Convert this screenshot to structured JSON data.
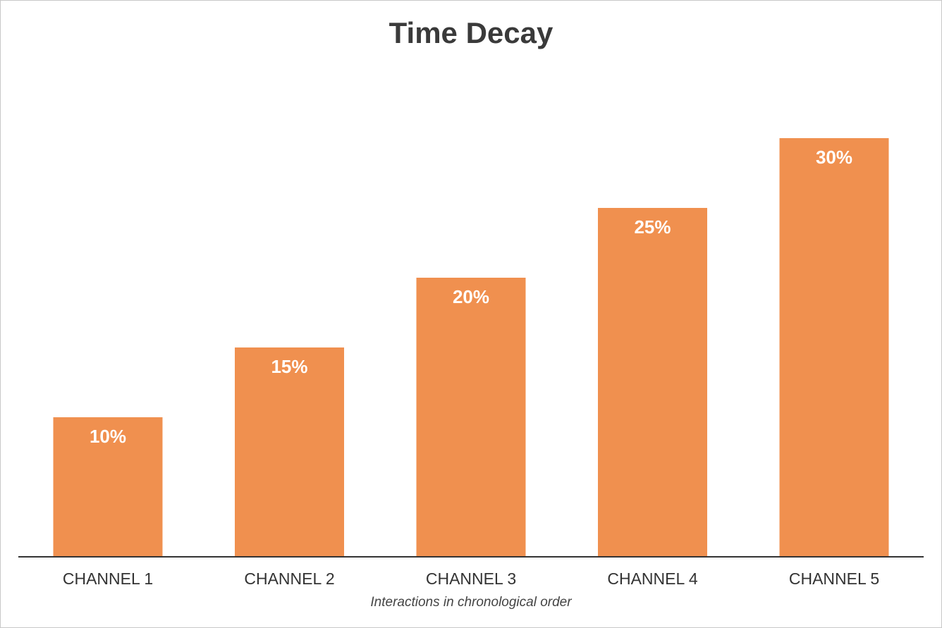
{
  "chart_data": {
    "type": "bar",
    "title": "Time Decay",
    "xlabel": "Interactions in chronological order",
    "ylabel": "",
    "categories": [
      "CHANNEL 1",
      "CHANNEL 2",
      "CHANNEL 3",
      "CHANNEL 4",
      "CHANNEL 5"
    ],
    "values": [
      10,
      15,
      20,
      25,
      30
    ],
    "data_labels": [
      "10%",
      "15%",
      "20%",
      "25%",
      "30%"
    ],
    "ylim": [
      0,
      40
    ],
    "grid": false,
    "legend": "none",
    "bar_color": "#f0904f",
    "axis_color": "#333333"
  }
}
